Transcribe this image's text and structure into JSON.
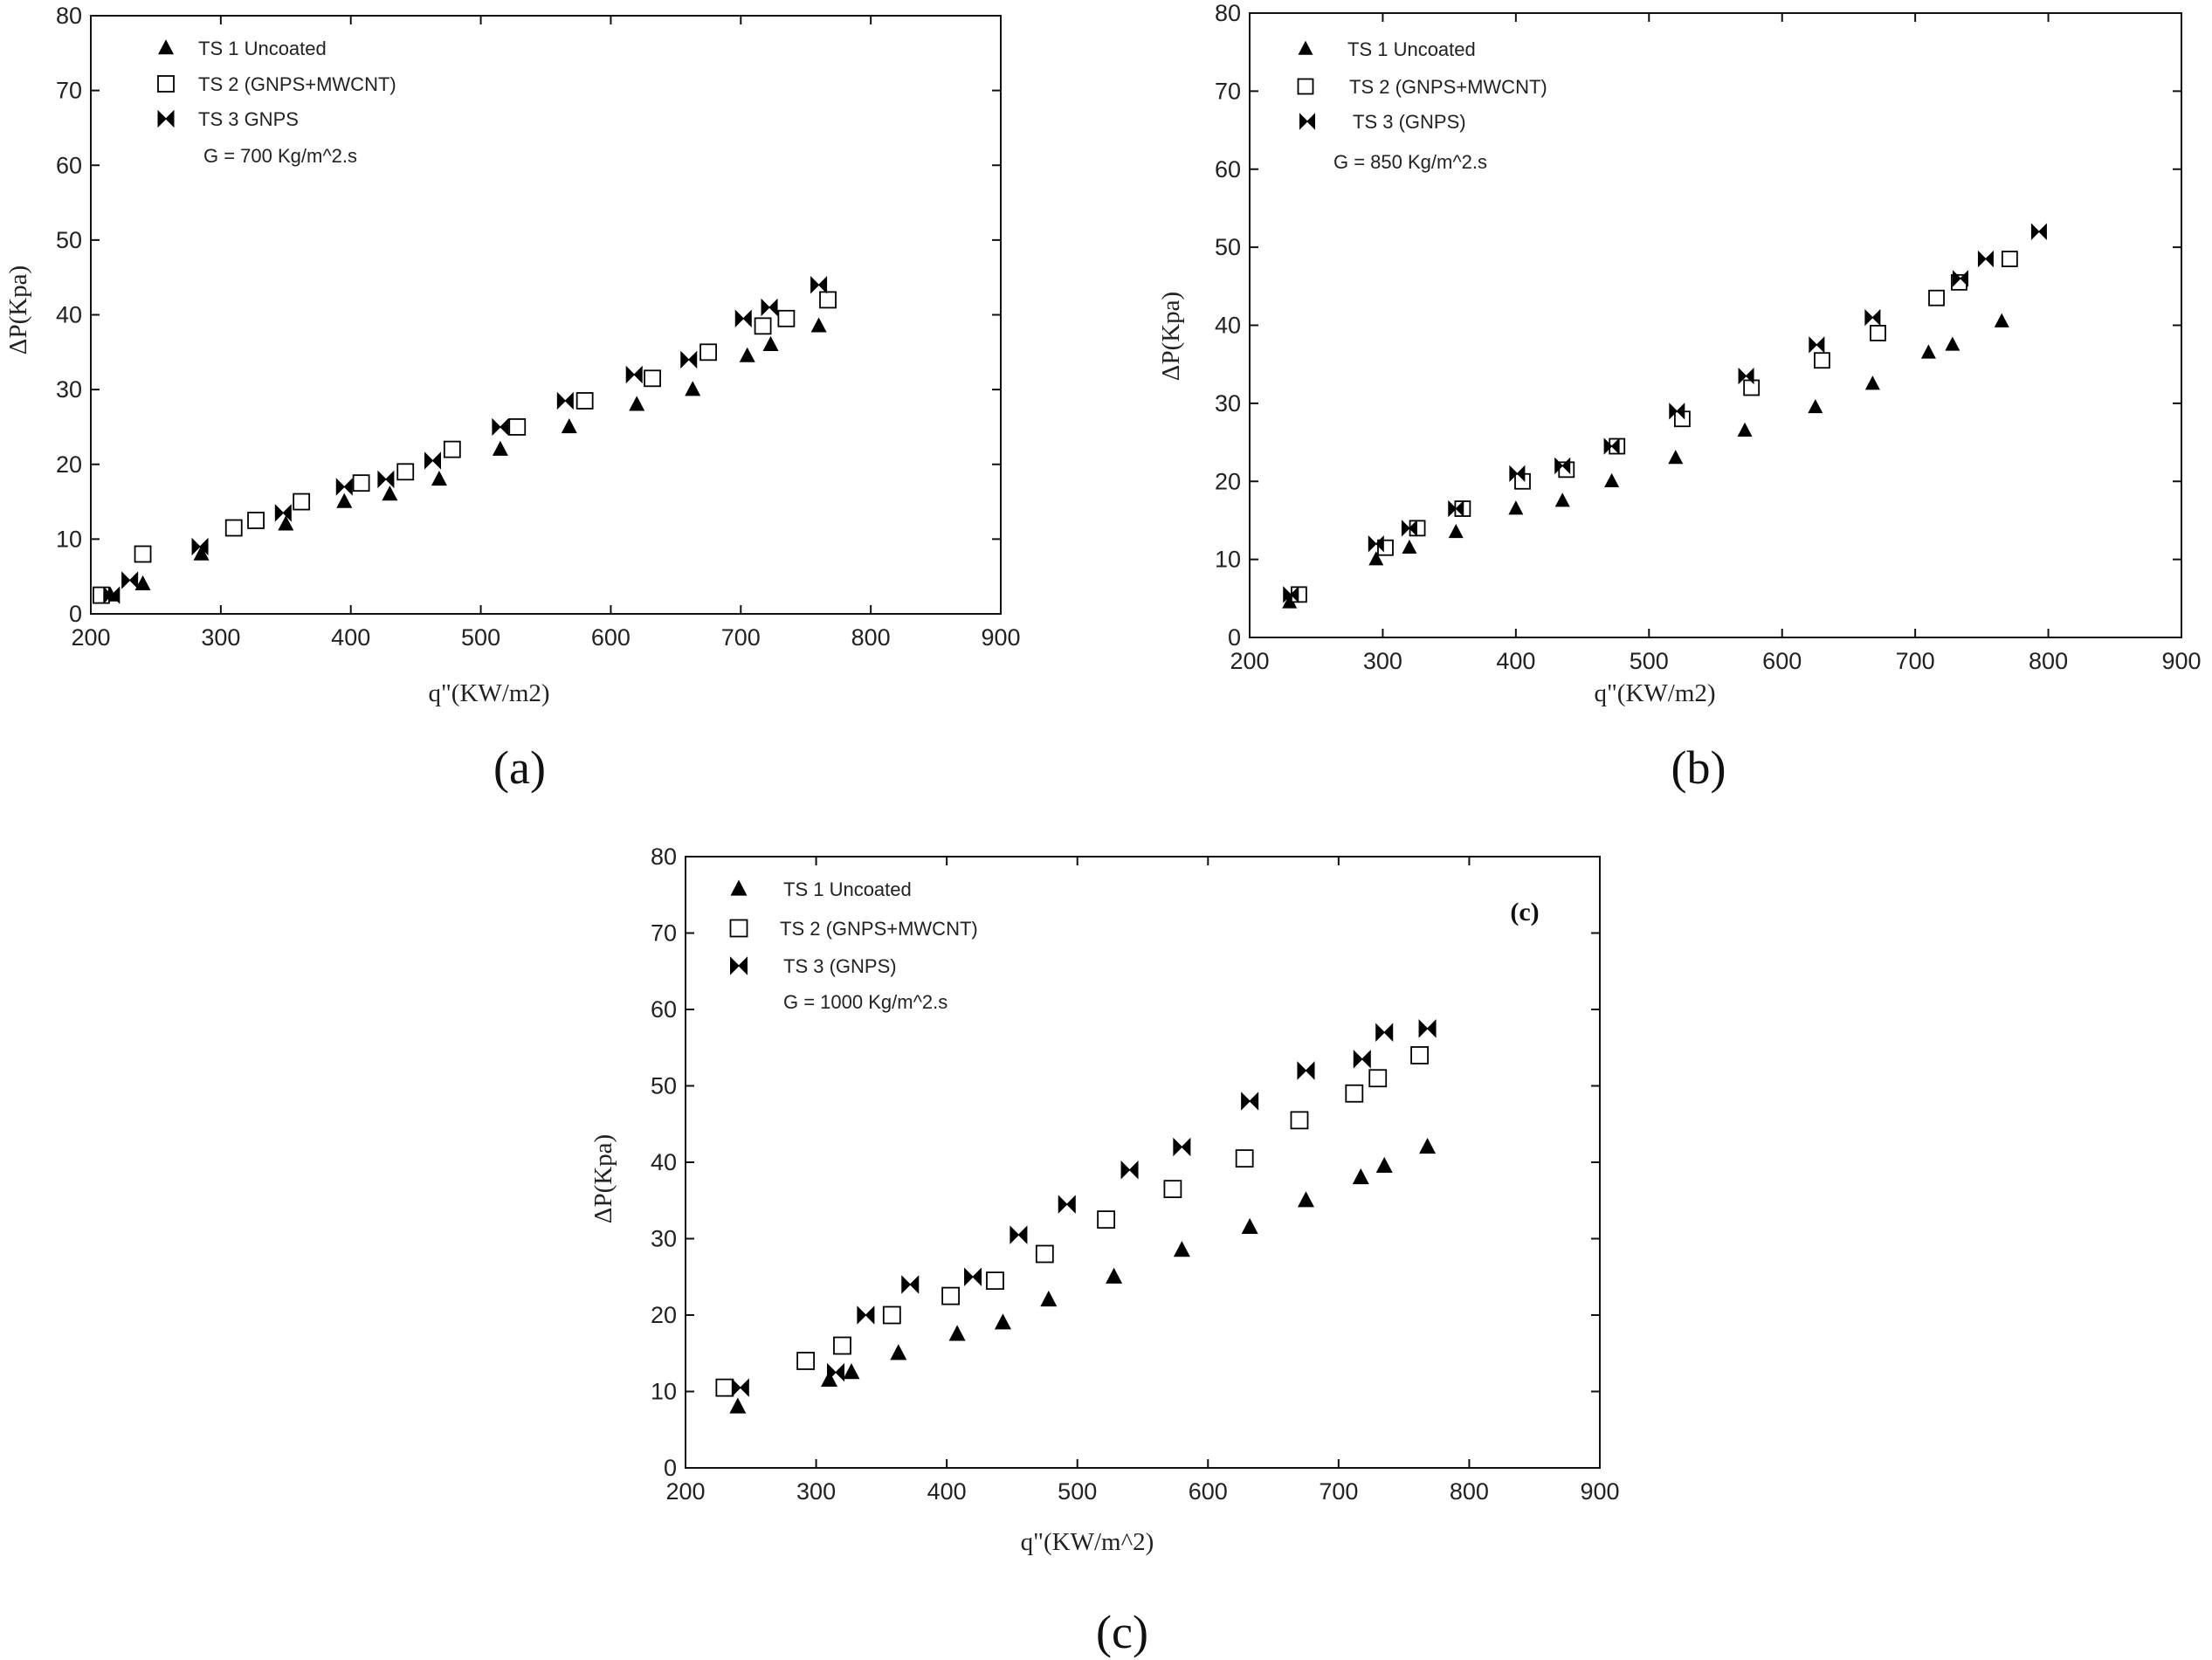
{
  "chart_data": [
    {
      "type": "scatter",
      "panel_label": "(a)",
      "inner_label": "",
      "xlabel": "q\"(KW/m2)",
      "ylabel": "ΔP(Kpa)",
      "xlim": [
        200,
        900
      ],
      "ylim": [
        0,
        80
      ],
      "xticks": [
        "200",
        "300",
        "400",
        "500",
        "600",
        "700",
        "800",
        "900"
      ],
      "yticks": [
        "0",
        "10",
        "20",
        "30",
        "40",
        "50",
        "60",
        "70",
        "80"
      ],
      "annotation": "G = 700 Kg/m^2.s",
      "series": [
        {
          "name": "TS 1 Uncoated",
          "marker": "triangle",
          "x": [
            215,
            240,
            285,
            350,
            395,
            430,
            468,
            515,
            568,
            620,
            663,
            705,
            723,
            760
          ],
          "y": [
            2.5,
            4,
            8,
            12,
            15,
            16,
            18,
            22,
            25,
            28,
            30,
            34.5,
            36,
            38.5
          ]
        },
        {
          "name": "TS 2 (GNPS+MWCNT)",
          "marker": "square",
          "x": [
            208,
            240,
            310,
            327,
            362,
            408,
            442,
            478,
            528,
            580,
            632,
            675,
            717,
            735,
            767
          ],
          "y": [
            2.5,
            8,
            11.5,
            12.5,
            15,
            17.5,
            19,
            22,
            25,
            28.5,
            31.5,
            35,
            38.5,
            39.5,
            42
          ]
        },
        {
          "name": "TS 3 GNPS",
          "marker": "bowtie",
          "x": [
            216,
            230,
            284,
            348,
            395,
            427,
            463,
            515,
            565,
            618,
            660,
            702,
            722,
            760
          ],
          "y": [
            2.5,
            4.5,
            9,
            13.5,
            17,
            18,
            20.5,
            25,
            28.5,
            32,
            34,
            39.5,
            41,
            44
          ]
        }
      ]
    },
    {
      "type": "scatter",
      "panel_label": "(b)",
      "inner_label": "",
      "xlabel": "q\"(KW/m2)",
      "ylabel": "ΔP(Kpa)",
      "xlim": [
        200,
        900
      ],
      "ylim": [
        0,
        80
      ],
      "xticks": [
        "200",
        "300",
        "400",
        "500",
        "600",
        "700",
        "800",
        "900"
      ],
      "yticks": [
        "0",
        "10",
        "20",
        "30",
        "40",
        "50",
        "60",
        "70",
        "80"
      ],
      "annotation": "G = 850 Kg/m^2.s",
      "series": [
        {
          "name": "TS 1 Uncoated",
          "marker": "triangle",
          "x": [
            230,
            295,
            320,
            355,
            400,
            435,
            472,
            520,
            572,
            625,
            668,
            710,
            728,
            765
          ],
          "y": [
            4.5,
            10,
            11.5,
            13.5,
            16.5,
            17.5,
            20,
            23,
            26.5,
            29.5,
            32.5,
            36.5,
            37.5,
            40.5
          ]
        },
        {
          "name": "TS 2 (GNPS+MWCNT)",
          "marker": "square",
          "x": [
            237,
            302,
            326,
            360,
            405,
            438,
            476,
            525,
            577,
            630,
            672,
            716,
            733,
            771
          ],
          "y": [
            5.5,
            11.5,
            14,
            16.5,
            20,
            21.5,
            24.5,
            28,
            32,
            35.5,
            39,
            43.5,
            45.5,
            48.5
          ]
        },
        {
          "name": "TS 3 (GNPS)",
          "marker": "bowtie",
          "x": [
            231,
            295,
            320,
            355,
            401,
            435,
            472,
            521,
            573,
            626,
            668,
            734,
            753,
            793
          ],
          "y": [
            5.5,
            12,
            14,
            16.5,
            21,
            22,
            24.5,
            29,
            33.5,
            37.5,
            41,
            46,
            48.5,
            52
          ]
        }
      ]
    },
    {
      "type": "scatter",
      "panel_label": "(c)",
      "inner_label": "(c)",
      "xlabel": "q\"(KW/m^2)",
      "ylabel": "ΔP(Kpa)",
      "xlim": [
        200,
        900
      ],
      "ylim": [
        0,
        80
      ],
      "xticks": [
        "200",
        "300",
        "400",
        "500",
        "600",
        "700",
        "800",
        "900"
      ],
      "yticks": [
        "0",
        "10",
        "20",
        "30",
        "40",
        "50",
        "60",
        "70",
        "80"
      ],
      "annotation": "G = 1000 Kg/m^2.s",
      "series": [
        {
          "name": "TS 1 Uncoated",
          "marker": "triangle",
          "x": [
            240,
            310,
            327,
            363,
            408,
            443,
            478,
            528,
            580,
            632,
            675,
            717,
            735,
            768
          ],
          "y": [
            8,
            11.5,
            12.5,
            15,
            17.5,
            19,
            22,
            25,
            28.5,
            31.5,
            35,
            38,
            39.5,
            42
          ]
        },
        {
          "name": "TS 2 (GNPS+MWCNT)",
          "marker": "square",
          "x": [
            230,
            292,
            320,
            358,
            403,
            437,
            475,
            522,
            573,
            628,
            670,
            712,
            730,
            762
          ],
          "y": [
            10.5,
            14,
            16,
            20,
            22.5,
            24.5,
            28,
            32.5,
            36.5,
            40.5,
            45.5,
            49,
            51,
            54
          ]
        },
        {
          "name": "TS 3 (GNPS)",
          "marker": "bowtie",
          "x": [
            242,
            315,
            338,
            372,
            420,
            455,
            492,
            540,
            580,
            632,
            675,
            718,
            735,
            768
          ],
          "y": [
            10.5,
            12.5,
            20,
            24,
            25,
            30.5,
            34.5,
            39,
            42,
            48,
            52,
            53.5,
            57,
            57.5
          ]
        }
      ]
    }
  ]
}
